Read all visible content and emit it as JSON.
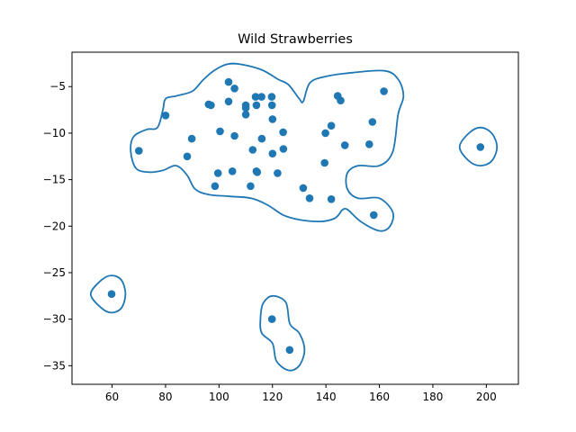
{
  "chart_data": {
    "type": "scatter",
    "title": "Wild Strawberries",
    "xlabel": "",
    "ylabel": "",
    "xlim": [
      45,
      212
    ],
    "ylim": [
      -37,
      -1.3
    ],
    "xticks": [
      60,
      80,
      100,
      120,
      140,
      160,
      180,
      200
    ],
    "yticks": [
      -5,
      -10,
      -15,
      -20,
      -25,
      -30,
      -35
    ],
    "grid": false,
    "colors": {
      "points": "#1f77b4",
      "contours": "#1f77b4"
    },
    "points": [
      [
        59.8,
        -27.3
      ],
      [
        70.0,
        -11.9
      ],
      [
        80.0,
        -8.1
      ],
      [
        88.1,
        -12.5
      ],
      [
        89.8,
        -10.6
      ],
      [
        96.1,
        -6.9
      ],
      [
        97.0,
        -7.0
      ],
      [
        98.5,
        -15.7
      ],
      [
        99.6,
        -14.3
      ],
      [
        100.4,
        -9.8
      ],
      [
        103.6,
        -4.5
      ],
      [
        103.6,
        -6.6
      ],
      [
        105.0,
        -14.1
      ],
      [
        105.8,
        -5.2
      ],
      [
        105.8,
        -10.3
      ],
      [
        110.0,
        -7.0
      ],
      [
        110.0,
        -7.3
      ],
      [
        110.0,
        -8.0
      ],
      [
        111.8,
        -15.7
      ],
      [
        112.6,
        -11.8
      ],
      [
        113.7,
        -6.1
      ],
      [
        114.0,
        -7.0
      ],
      [
        114.0,
        -14.1
      ],
      [
        114.3,
        -14.2
      ],
      [
        115.9,
        -6.1
      ],
      [
        116.0,
        -10.6
      ],
      [
        119.7,
        -6.1
      ],
      [
        119.8,
        -7.0
      ],
      [
        120.0,
        -8.5
      ],
      [
        120.0,
        -12.2
      ],
      [
        119.8,
        -30.0
      ],
      [
        121.9,
        -14.3
      ],
      [
        124.0,
        -9.9
      ],
      [
        124.1,
        -11.7
      ],
      [
        126.4,
        -33.3
      ],
      [
        131.5,
        -15.9
      ],
      [
        133.9,
        -17.0
      ],
      [
        139.5,
        -13.2
      ],
      [
        139.8,
        -10.0
      ],
      [
        142.0,
        -9.2
      ],
      [
        142.0,
        -17.1
      ],
      [
        144.4,
        -6.0
      ],
      [
        145.5,
        -6.5
      ],
      [
        147.1,
        -11.3
      ],
      [
        156.2,
        -11.2
      ],
      [
        157.4,
        -8.8
      ],
      [
        157.9,
        -18.8
      ],
      [
        161.7,
        -5.5
      ],
      [
        197.8,
        -11.5
      ]
    ],
    "contours": [
      [
        [
          108,
          -2.6
        ],
        [
          116,
          -3.2
        ],
        [
          122,
          -4.2
        ],
        [
          126,
          -4.8
        ],
        [
          130,
          -6.3
        ],
        [
          131.5,
          -6.6
        ],
        [
          134,
          -4.6
        ],
        [
          140,
          -3.9
        ],
        [
          150,
          -3.5
        ],
        [
          162,
          -3.3
        ],
        [
          167,
          -4.2
        ],
        [
          169,
          -6.0
        ],
        [
          167,
          -8.0
        ],
        [
          165,
          -12.0
        ],
        [
          160,
          -13.5
        ],
        [
          152,
          -13.5
        ],
        [
          148,
          -14.3
        ],
        [
          148,
          -16.0
        ],
        [
          152,
          -17.0
        ],
        [
          160,
          -17.0
        ],
        [
          165,
          -18.5
        ],
        [
          164,
          -20.0
        ],
        [
          160,
          -20.5
        ],
        [
          153,
          -19.5
        ],
        [
          148,
          -18.2
        ],
        [
          146,
          -18.3
        ],
        [
          145,
          -18.7
        ],
        [
          143,
          -19.2
        ],
        [
          138,
          -19.5
        ],
        [
          130,
          -19.3
        ],
        [
          124,
          -18.8
        ],
        [
          118,
          -17.7
        ],
        [
          112,
          -17.0
        ],
        [
          104,
          -16.8
        ],
        [
          96,
          -16.6
        ],
        [
          91,
          -16.0
        ],
        [
          88,
          -14.5
        ],
        [
          84,
          -13.5
        ],
        [
          79,
          -14.0
        ],
        [
          74,
          -14.2
        ],
        [
          69,
          -13.8
        ],
        [
          67,
          -12.0
        ],
        [
          68,
          -10.4
        ],
        [
          73,
          -9.6
        ],
        [
          77,
          -9.4
        ],
        [
          79,
          -7.5
        ],
        [
          80,
          -6.3
        ],
        [
          84,
          -6.0
        ],
        [
          90,
          -5.5
        ],
        [
          94,
          -4.3
        ],
        [
          98,
          -3.3
        ],
        [
          103,
          -2.6
        ],
        [
          108,
          -2.6
        ]
      ],
      [
        [
          59.8,
          -25.3
        ],
        [
          63.5,
          -25.8
        ],
        [
          65.0,
          -27.3
        ],
        [
          63.5,
          -28.8
        ],
        [
          59.8,
          -29.3
        ],
        [
          56.0,
          -28.8
        ],
        [
          52.0,
          -27.3
        ],
        [
          56.0,
          -25.8
        ],
        [
          59.8,
          -25.3
        ]
      ],
      [
        [
          197.8,
          -9.4
        ],
        [
          202.0,
          -10.0
        ],
        [
          204.0,
          -11.5
        ],
        [
          202.0,
          -13.0
        ],
        [
          197.8,
          -13.5
        ],
        [
          193.5,
          -13.0
        ],
        [
          190.0,
          -11.5
        ],
        [
          193.5,
          -10.0
        ],
        [
          197.8,
          -9.4
        ]
      ],
      [
        [
          120,
          -27.5
        ],
        [
          125,
          -28.2
        ],
        [
          126.5,
          -30.5
        ],
        [
          130,
          -31.5
        ],
        [
          132,
          -33.3
        ],
        [
          130,
          -35.0
        ],
        [
          126,
          -35.5
        ],
        [
          121.5,
          -34.5
        ],
        [
          120,
          -32.6
        ],
        [
          116,
          -31.5
        ],
        [
          115.5,
          -30.0
        ],
        [
          116.5,
          -28.3
        ],
        [
          120,
          -27.5
        ]
      ]
    ]
  }
}
